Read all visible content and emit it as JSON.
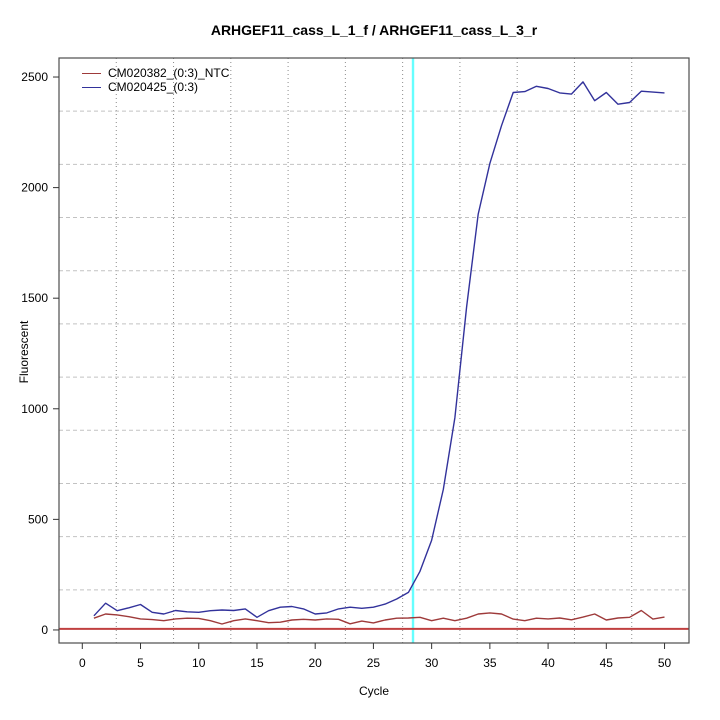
{
  "chart_data": {
    "type": "line",
    "title": "ARHGEF11_cass_L_1_f / ARHGEF11_cass_L_3_r",
    "xlabel": "Cycle",
    "ylabel": "Fluorescent",
    "x_ticks": [
      0,
      5,
      10,
      15,
      20,
      25,
      30,
      35,
      40,
      45,
      50
    ],
    "y_ticks": [
      0,
      500,
      1000,
      1500,
      2000,
      2500
    ],
    "xlim": [
      -2,
      52.1
    ],
    "ylim": [
      -59,
      2586
    ],
    "grid": {
      "on": true,
      "cells_x": 11,
      "cells_y": 11
    },
    "legend_position": "top-left",
    "x": [
      1,
      2,
      3,
      4,
      5,
      6,
      7,
      8,
      9,
      10,
      11,
      12,
      13,
      14,
      15,
      16,
      17,
      18,
      19,
      20,
      21,
      22,
      23,
      24,
      25,
      26,
      27,
      28,
      29,
      30,
      31,
      32,
      33,
      34,
      35,
      36,
      37,
      38,
      39,
      40,
      41,
      42,
      43,
      44,
      45,
      46,
      47,
      48,
      49,
      50
    ],
    "series": [
      {
        "name": "CM020382_(0:3)_NTC",
        "color": "#9E3A3A",
        "values": [
          53,
          72,
          68,
          60,
          50,
          47,
          42,
          50,
          53,
          52,
          42,
          27,
          42,
          50,
          42,
          33,
          35,
          45,
          48,
          45,
          50,
          48,
          28,
          40,
          32,
          45,
          53,
          54,
          57,
          42,
          53,
          42,
          53,
          72,
          77,
          72,
          49,
          42,
          53,
          50,
          54,
          46,
          58,
          72,
          45,
          54,
          57,
          88,
          49,
          58
        ]
      },
      {
        "name": "CM020425_(0:3)",
        "color": "#32329B",
        "values": [
          64,
          121,
          87,
          100,
          115,
          80,
          72,
          88,
          82,
          80,
          87,
          90,
          88,
          95,
          57,
          87,
          103,
          106,
          95,
          72,
          77,
          95,
          103,
          98,
          103,
          117,
          140,
          170,
          265,
          405,
          635,
          960,
          1460,
          1880,
          2110,
          2280,
          2430,
          2434,
          2458,
          2448,
          2428,
          2423,
          2478,
          2393,
          2430,
          2377,
          2385,
          2436,
          2432,
          2428
        ]
      }
    ],
    "threshold_line": {
      "value": 5,
      "color": "#C04040"
    },
    "ct_marker": {
      "cycle": 28.4,
      "color": "#66FFFF"
    }
  }
}
